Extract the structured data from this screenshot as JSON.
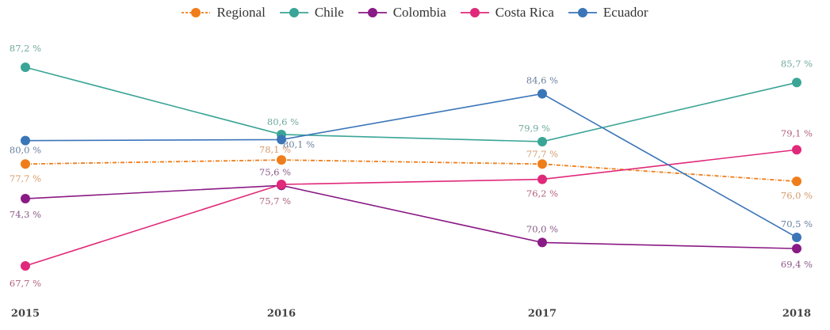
{
  "chart_data": {
    "type": "line",
    "title": "",
    "xlabel": "",
    "ylabel": "",
    "categories": [
      "2015",
      "2016",
      "2017",
      "2018"
    ],
    "ylim": [
      67.7,
      87.2
    ],
    "grid": false,
    "legend_position": "top-center",
    "series": [
      {
        "name": "Regional",
        "color": "#ef7d1a",
        "style": "dash-dot",
        "values": [
          77.7,
          78.1,
          77.7,
          76.0
        ],
        "labels": [
          "77,7 %",
          "78,1 %",
          "77,7 %",
          "76,0 %"
        ],
        "label_colors": "#d49a6a"
      },
      {
        "name": "Chile",
        "color": "#3aa596",
        "style": "solid",
        "values": [
          87.2,
          80.6,
          79.9,
          85.7
        ],
        "labels": [
          "87,2 %",
          "80,6 %",
          "79,9 %",
          "85,7 %"
        ],
        "label_colors": "#6fa89e"
      },
      {
        "name": "Colombia",
        "color": "#8a1a85",
        "style": "solid",
        "values": [
          74.3,
          75.6,
          70.0,
          69.4
        ],
        "labels": [
          "74,3 %",
          "75,6 %",
          "70,0 %",
          "69,4 %"
        ],
        "label_colors": "#8a5a88"
      },
      {
        "name": "Costa Rica",
        "color": "#e0297a",
        "style": "solid",
        "values": [
          67.7,
          75.7,
          76.2,
          79.1
        ],
        "labels": [
          "67,7 %",
          "75,7 %",
          "76,2 %",
          "79,1 %"
        ],
        "label_colors": "#b0607e"
      },
      {
        "name": "Ecuador",
        "color": "#3a75b8",
        "style": "solid",
        "values": [
          80.0,
          80.1,
          84.6,
          70.5
        ],
        "labels": [
          "80,0 %",
          "80,1 %",
          "84,6 %",
          "70,5 %"
        ],
        "label_colors": "#6a80a0"
      }
    ]
  }
}
